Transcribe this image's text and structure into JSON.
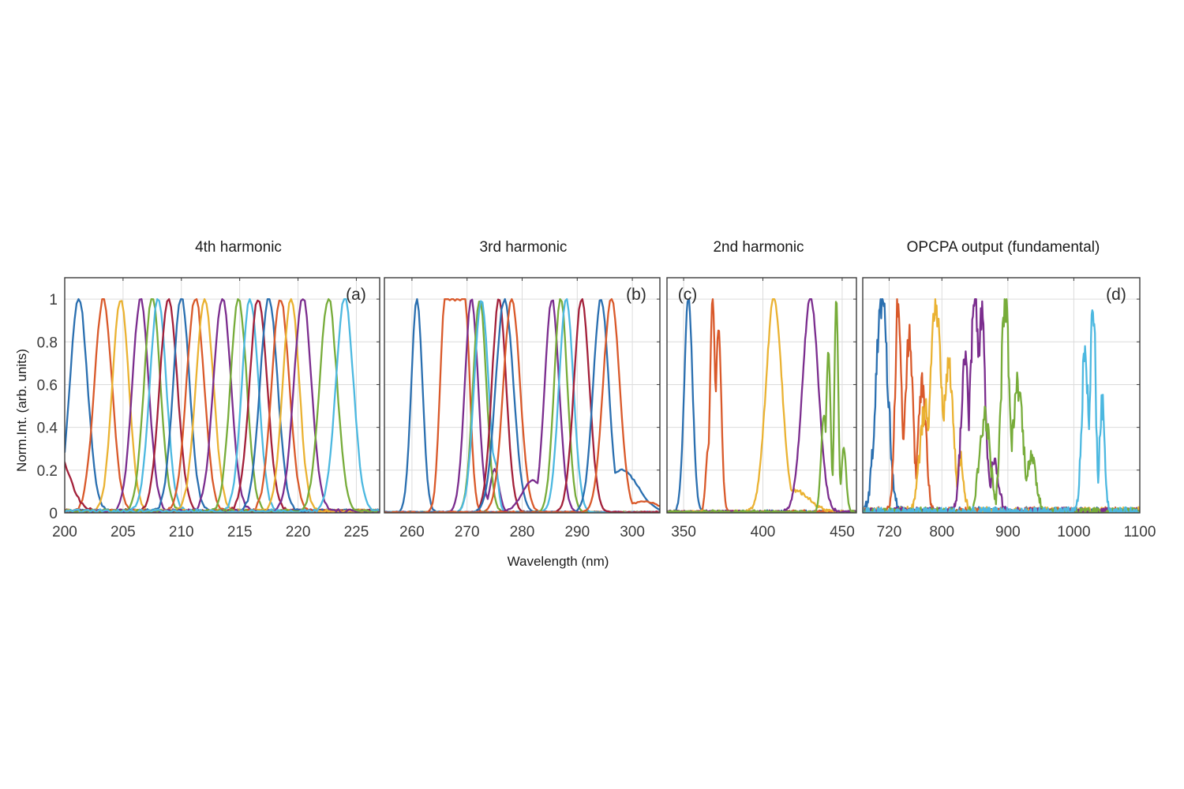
{
  "figure": {
    "shared_ylabel": "Norm.Int. (arb. units)",
    "shared_xlabel": "Wavelength (nm)"
  },
  "palette": {
    "blue": "#2a6fb0",
    "orange": "#d9592a",
    "yellow": "#eab232",
    "purple": "#7b2d8e",
    "green": "#77ac3a",
    "cyan": "#4cb8e0",
    "darkred": "#a3203a"
  },
  "chart_data": [
    {
      "type": "line",
      "panel": "a",
      "tag": "(a)",
      "title": "4th harmonic",
      "xlabel": "",
      "ylabel": "Norm.Int. (arb. units)",
      "xlim": [
        200,
        227
      ],
      "ylim": [
        0,
        1.1
      ],
      "grid": true,
      "xticks": [
        200,
        205,
        210,
        215,
        220,
        225
      ],
      "yticks": [
        0,
        0.2,
        0.4,
        0.6,
        0.8,
        1
      ],
      "ytick_labels": [
        "0",
        "0.2",
        "0.4",
        "0.6",
        "0.8",
        "1"
      ],
      "noise": 0.01,
      "baseline": 0.015,
      "series": [
        {
          "color": "blue",
          "peaks": [
            [
              201.2,
              0.75,
              1.0
            ]
          ]
        },
        {
          "color": "orange",
          "peaks": [
            [
              203.3,
              0.75,
              1.0
            ]
          ]
        },
        {
          "color": "yellow",
          "peaks": [
            [
              204.8,
              0.7,
              1.0
            ]
          ]
        },
        {
          "color": "purple",
          "peaks": [
            [
              206.5,
              0.7,
              1.0
            ]
          ]
        },
        {
          "color": "green",
          "peaks": [
            [
              207.5,
              0.7,
              1.0
            ]
          ]
        },
        {
          "color": "cyan",
          "peaks": [
            [
              208.0,
              0.7,
              1.0
            ]
          ]
        },
        {
          "color": "darkred",
          "peaks": [
            [
              208.9,
              0.75,
              1.0
            ]
          ]
        },
        {
          "color": "blue",
          "peaks": [
            [
              210.0,
              0.7,
              1.0
            ]
          ]
        },
        {
          "color": "orange",
          "peaks": [
            [
              211.2,
              0.75,
              1.0
            ]
          ]
        },
        {
          "color": "yellow",
          "peaks": [
            [
              212.0,
              0.75,
              1.0
            ]
          ]
        },
        {
          "color": "purple",
          "peaks": [
            [
              213.5,
              0.75,
              1.0
            ]
          ]
        },
        {
          "color": "green",
          "peaks": [
            [
              214.9,
              0.7,
              1.0
            ]
          ]
        },
        {
          "color": "cyan",
          "peaks": [
            [
              215.9,
              0.7,
              1.0
            ]
          ]
        },
        {
          "color": "darkred",
          "peaks": [
            [
              216.6,
              0.75,
              1.0
            ],
            [
              199.0,
              1.2,
              0.32
            ]
          ]
        },
        {
          "color": "blue",
          "peaks": [
            [
              217.5,
              0.75,
              1.0
            ]
          ]
        },
        {
          "color": "orange",
          "peaks": [
            [
              218.5,
              0.75,
              1.0
            ]
          ]
        },
        {
          "color": "yellow",
          "peaks": [
            [
              219.4,
              0.7,
              1.0
            ]
          ]
        },
        {
          "color": "purple",
          "peaks": [
            [
              220.4,
              0.75,
              1.0
            ]
          ]
        },
        {
          "color": "green",
          "peaks": [
            [
              222.6,
              0.75,
              1.0
            ]
          ]
        },
        {
          "color": "cyan",
          "peaks": [
            [
              224.0,
              0.75,
              1.0
            ]
          ]
        }
      ]
    },
    {
      "type": "line",
      "panel": "b",
      "tag": "(b)",
      "title": "3rd harmonic",
      "xlabel": "",
      "ylabel": "",
      "xlim": [
        255,
        305
      ],
      "ylim": [
        0,
        1.1
      ],
      "grid": true,
      "xticks": [
        260,
        270,
        280,
        290,
        300
      ],
      "yticks": [
        0,
        0.2,
        0.4,
        0.6,
        0.8,
        1
      ],
      "noise": 0.008,
      "baseline": 0.005,
      "series": [
        {
          "color": "blue",
          "peaks": [
            [
              260.9,
              1.0,
              1.0
            ]
          ]
        },
        {
          "color": "orange",
          "peaks": [
            [
              267.8,
              1.8,
              1.0
            ]
          ],
          "flat_top": true
        },
        {
          "color": "purple",
          "peaks": [
            [
              270.8,
              1.2,
              1.0
            ],
            [
              275.0,
              0.8,
              0.2
            ]
          ]
        },
        {
          "color": "green",
          "peaks": [
            [
              272.3,
              1.2,
              1.0
            ]
          ]
        },
        {
          "color": "cyan",
          "peaks": [
            [
              272.6,
              1.3,
              1.0
            ],
            [
              275.0,
              0.6,
              0.25
            ]
          ]
        },
        {
          "color": "darkred",
          "peaks": [
            [
              275.8,
              1.3,
              1.0
            ]
          ]
        },
        {
          "color": "blue",
          "peaks": [
            [
              276.8,
              1.6,
              1.0
            ]
          ]
        },
        {
          "color": "orange",
          "peaks": [
            [
              278.1,
              1.5,
              1.0
            ]
          ]
        },
        {
          "color": "purple",
          "peaks": [
            [
              285.4,
              1.3,
              1.0
            ],
            [
              282.0,
              2.0,
              0.15
            ]
          ]
        },
        {
          "color": "green",
          "peaks": [
            [
              287.0,
              1.2,
              1.0
            ]
          ]
        },
        {
          "color": "cyan",
          "peaks": [
            [
              288.0,
              1.3,
              1.0
            ]
          ]
        },
        {
          "color": "darkred",
          "peaks": [
            [
              290.8,
              1.4,
              1.0
            ]
          ]
        },
        {
          "color": "blue",
          "peaks": [
            [
              294.3,
              1.4,
              1.0
            ],
            [
              298.0,
              3.0,
              0.2
            ]
          ]
        },
        {
          "color": "orange",
          "peaks": [
            [
              296.2,
              1.5,
              1.0
            ],
            [
              302.0,
              3.0,
              0.05
            ]
          ]
        }
      ]
    },
    {
      "type": "line",
      "panel": "c",
      "tag": "(c)",
      "title": "2nd harmonic",
      "xlabel": "",
      "ylabel": "",
      "xlim": [
        339.5,
        459
      ],
      "ylim": [
        0,
        1.1
      ],
      "grid": true,
      "xticks": [
        350,
        400,
        450
      ],
      "yticks": [
        0,
        0.2,
        0.4,
        0.6,
        0.8,
        1
      ],
      "noise": 0.012,
      "baseline": 0.01,
      "series": [
        {
          "color": "blue",
          "peaks": [
            [
              353.0,
              2.6,
              1.0
            ]
          ]
        },
        {
          "color": "orange",
          "peaks": [
            [
              368.3,
              1.6,
              1.0
            ],
            [
              372.0,
              1.8,
              0.85
            ],
            [
              365.5,
              1.5,
              0.3
            ]
          ]
        },
        {
          "color": "yellow",
          "peaks": [
            [
              407.0,
              5.0,
              1.0
            ],
            [
              420.0,
              9.0,
              0.1
            ]
          ]
        },
        {
          "color": "purple",
          "peaks": [
            [
              430.0,
              5.0,
              1.0
            ]
          ]
        },
        {
          "color": "green",
          "peaks": [
            [
              446.3,
              1.2,
              1.0
            ],
            [
              441.3,
              1.4,
              0.75
            ],
            [
              438.5,
              1.8,
              0.45
            ],
            [
              451.0,
              1.5,
              0.3
            ]
          ]
        }
      ]
    },
    {
      "type": "line",
      "panel": "d",
      "tag": "(d)",
      "title": "OPCPA output (fundamental)",
      "xlabel": "",
      "ylabel": "",
      "xlim": [
        680,
        1100
      ],
      "ylim": [
        0,
        1.1
      ],
      "grid": true,
      "xticks": [
        720,
        800,
        900,
        1000,
        1100
      ],
      "yticks": [
        0,
        0.2,
        0.4,
        0.6,
        0.8,
        1
      ],
      "noise": 0.09,
      "baseline": 0.005,
      "series": [
        {
          "color": "blue",
          "peaks": [
            [
              709,
              9,
              1.0
            ]
          ]
        },
        {
          "color": "orange",
          "peaks": [
            [
              734,
              5,
              1.0
            ],
            [
              750,
              6,
              0.82
            ],
            [
              770,
              6,
              0.58
            ]
          ]
        },
        {
          "color": "yellow",
          "peaks": [
            [
              791,
              8,
              1.0
            ],
            [
              775,
              8,
              0.5
            ],
            [
              810,
              7,
              0.7
            ],
            [
              828,
              5,
              0.25
            ]
          ]
        },
        {
          "color": "purple",
          "peaks": [
            [
              850,
              7,
              1.0
            ],
            [
              835,
              6,
              0.72
            ],
            [
              860,
              6,
              0.9
            ],
            [
              880,
              6,
              0.25
            ]
          ]
        },
        {
          "color": "green",
          "peaks": [
            [
              896,
              6,
              1.0
            ],
            [
              865,
              8,
              0.45
            ],
            [
              915,
              8,
              0.6
            ],
            [
              935,
              8,
              0.25
            ]
          ]
        },
        {
          "color": "cyan",
          "peaks": [
            [
              1029,
              4,
              1.0
            ],
            [
              1017,
              5,
              0.75
            ],
            [
              1043,
              4,
              0.5
            ]
          ]
        }
      ]
    }
  ]
}
